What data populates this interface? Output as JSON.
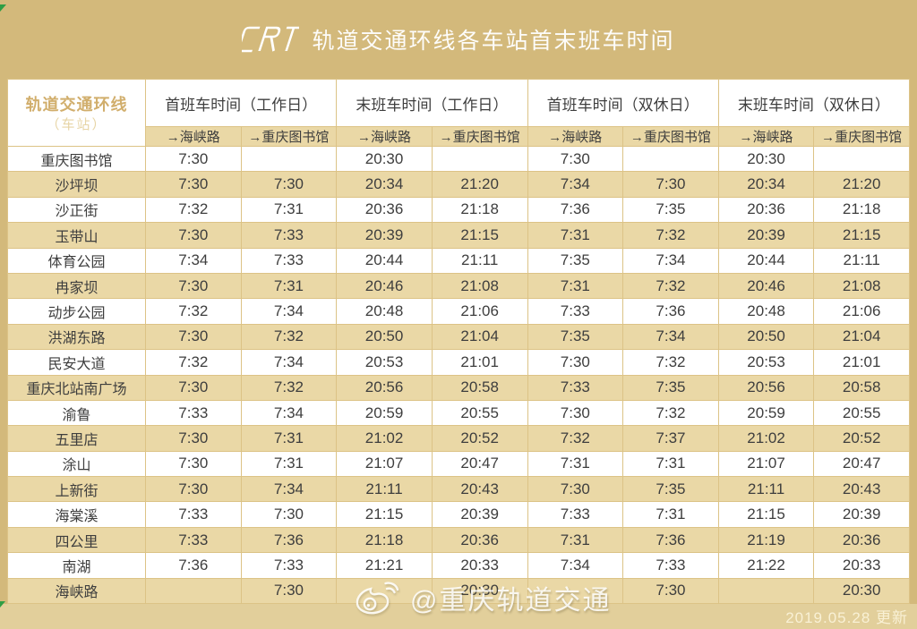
{
  "banner": {
    "logo": "CRT",
    "title": "轨道交通环线各车站首末班车时间"
  },
  "table": {
    "corner": {
      "line1": "轨道交通环线",
      "line2": "（车站）"
    },
    "groups": [
      "首班车时间（工作日）",
      "末班车时间（工作日）",
      "首班车时间（双休日）",
      "末班车时间（双休日）"
    ],
    "directions": [
      "→海峡路",
      "→重庆图书馆"
    ],
    "rows": [
      {
        "station": "重庆图书馆",
        "times": [
          "7:30",
          "",
          "20:30",
          "",
          "7:30",
          "",
          "20:30",
          ""
        ]
      },
      {
        "station": "沙坪坝",
        "times": [
          "7:30",
          "7:30",
          "20:34",
          "21:20",
          "7:34",
          "7:30",
          "20:34",
          "21:20"
        ]
      },
      {
        "station": "沙正街",
        "times": [
          "7:32",
          "7:31",
          "20:36",
          "21:18",
          "7:36",
          "7:35",
          "20:36",
          "21:18"
        ]
      },
      {
        "station": "玉带山",
        "times": [
          "7:30",
          "7:33",
          "20:39",
          "21:15",
          "7:31",
          "7:32",
          "20:39",
          "21:15"
        ]
      },
      {
        "station": "体育公园",
        "times": [
          "7:34",
          "7:33",
          "20:44",
          "21:11",
          "7:35",
          "7:34",
          "20:44",
          "21:11"
        ]
      },
      {
        "station": "冉家坝",
        "times": [
          "7:30",
          "7:31",
          "20:46",
          "21:08",
          "7:31",
          "7:32",
          "20:46",
          "21:08"
        ]
      },
      {
        "station": "动步公园",
        "times": [
          "7:32",
          "7:34",
          "20:48",
          "21:06",
          "7:33",
          "7:36",
          "20:48",
          "21:06"
        ]
      },
      {
        "station": "洪湖东路",
        "times": [
          "7:30",
          "7:32",
          "20:50",
          "21:04",
          "7:35",
          "7:34",
          "20:50",
          "21:04"
        ]
      },
      {
        "station": "民安大道",
        "times": [
          "7:32",
          "7:34",
          "20:53",
          "21:01",
          "7:30",
          "7:32",
          "20:53",
          "21:01"
        ]
      },
      {
        "station": "重庆北站南广场",
        "times": [
          "7:30",
          "7:32",
          "20:56",
          "20:58",
          "7:33",
          "7:35",
          "20:56",
          "20:58"
        ]
      },
      {
        "station": "渝鲁",
        "times": [
          "7:33",
          "7:34",
          "20:59",
          "20:55",
          "7:30",
          "7:32",
          "20:59",
          "20:55"
        ]
      },
      {
        "station": "五里店",
        "times": [
          "7:30",
          "7:31",
          "21:02",
          "20:52",
          "7:32",
          "7:37",
          "21:02",
          "20:52"
        ]
      },
      {
        "station": "涂山",
        "times": [
          "7:30",
          "7:31",
          "21:07",
          "20:47",
          "7:31",
          "7:31",
          "21:07",
          "20:47"
        ]
      },
      {
        "station": "上新街",
        "times": [
          "7:30",
          "7:34",
          "21:11",
          "20:43",
          "7:30",
          "7:35",
          "21:11",
          "20:43"
        ]
      },
      {
        "station": "海棠溪",
        "times": [
          "7:33",
          "7:30",
          "21:15",
          "20:39",
          "7:33",
          "7:31",
          "21:15",
          "20:39"
        ]
      },
      {
        "station": "四公里",
        "times": [
          "7:33",
          "7:36",
          "21:18",
          "20:36",
          "7:31",
          "7:36",
          "21:19",
          "20:36"
        ]
      },
      {
        "station": "南湖",
        "times": [
          "7:36",
          "7:33",
          "21:21",
          "20:33",
          "7:34",
          "7:33",
          "21:22",
          "20:33"
        ]
      },
      {
        "station": "海峡路",
        "times": [
          "",
          "7:30",
          "",
          "20:30",
          "",
          "7:30",
          "",
          "20:30"
        ]
      }
    ]
  },
  "footer": {
    "watermark": "@重庆轨道交通",
    "updated": "2019.05.28 更新"
  },
  "colors": {
    "banner_bg": "#d3b97b",
    "stripe_bg": "#ead8a6",
    "bottom_bg": "#e2cf9b",
    "border": "#dcc386",
    "text": "#3e3e3e",
    "corner_gold": "#d1ae6c"
  }
}
